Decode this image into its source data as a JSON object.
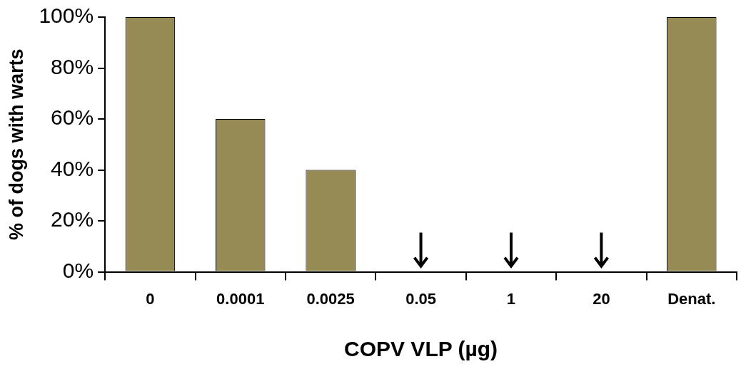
{
  "chart_data": {
    "type": "bar",
    "xlabel": "COPV VLP (µg)",
    "ylabel": "% of dogs with warts",
    "categories": [
      "0",
      "0.0001",
      "0.0025",
      "0.05",
      "1",
      "20",
      "Denat."
    ],
    "values": [
      100,
      60,
      40,
      0,
      0,
      0,
      100
    ],
    "color": "#978b55",
    "ylim": [
      0,
      100
    ],
    "yticks": [
      {
        "value": 0,
        "label": "0%"
      },
      {
        "value": 20,
        "label": "20%"
      },
      {
        "value": 40,
        "label": "40%"
      },
      {
        "value": 60,
        "label": "60%"
      },
      {
        "value": 80,
        "label": "80%"
      },
      {
        "value": 100,
        "label": "100%"
      }
    ],
    "grid": false,
    "legend": false
  }
}
